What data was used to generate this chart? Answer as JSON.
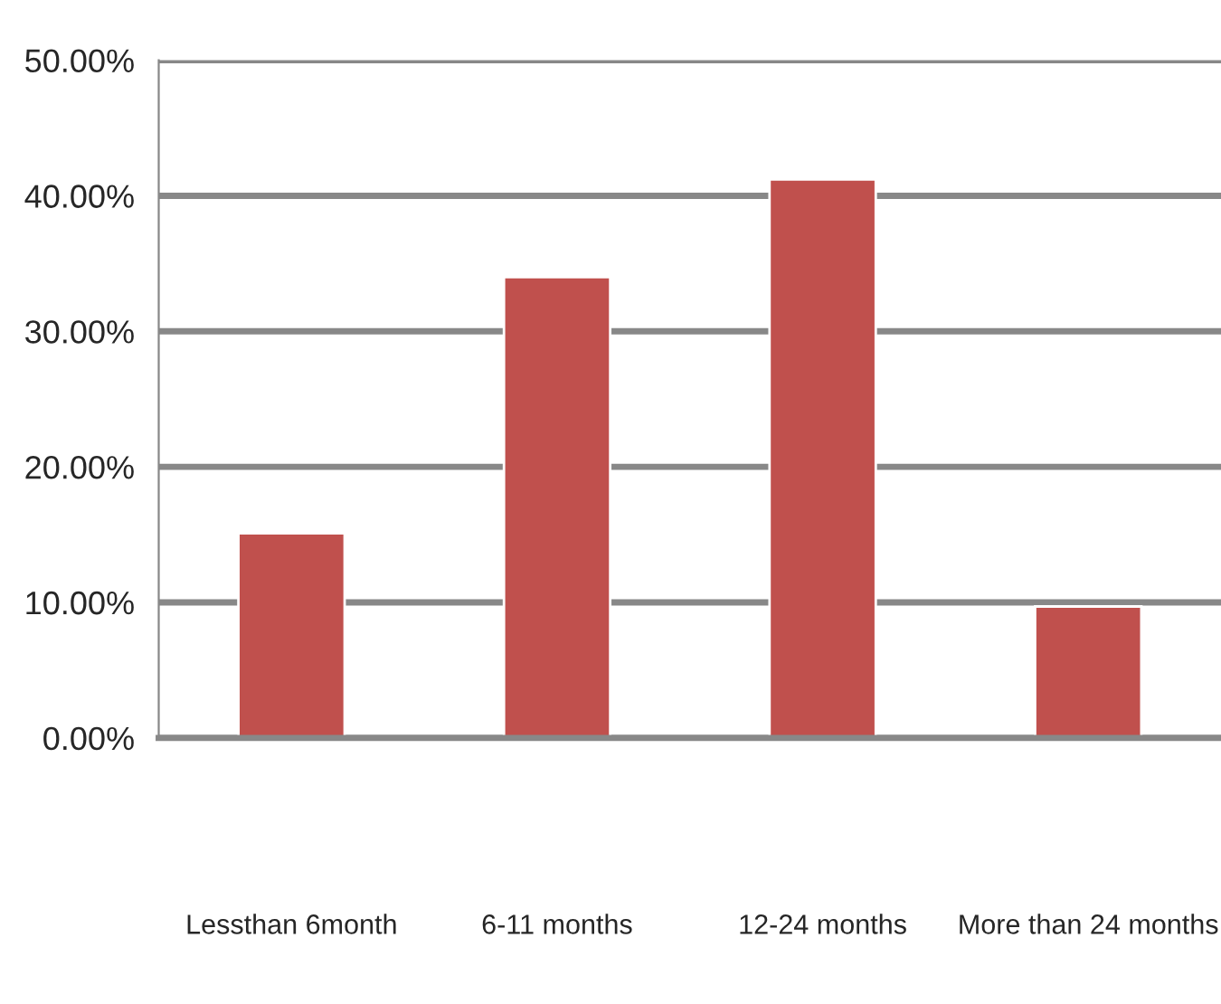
{
  "chart_data": {
    "type": "bar",
    "categories": [
      "Lessthan 6month",
      "6-11 months",
      "12-24 months",
      "More than 24 months"
    ],
    "values": [
      15.1,
      34.0,
      41.2,
      9.7
    ],
    "color": "#c0504d",
    "ylim": [
      0,
      50
    ],
    "yticks": [
      {
        "value": 0,
        "label": "0.00%"
      },
      {
        "value": 10,
        "label": "10.00%"
      },
      {
        "value": 20,
        "label": "20.00%"
      },
      {
        "value": 30,
        "label": "30.00%"
      },
      {
        "value": 40,
        "label": "40.00%"
      },
      {
        "value": 50,
        "label": "50.00%"
      }
    ],
    "grid": "y",
    "legend": false
  }
}
